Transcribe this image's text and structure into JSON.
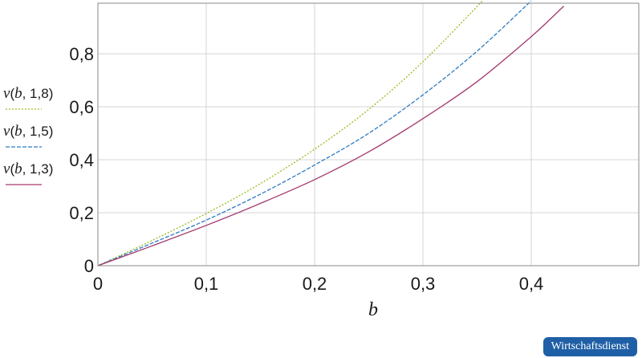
{
  "chart_data": {
    "type": "line",
    "xlabel": "b",
    "ylabel": "",
    "xlim": [
      0,
      0.5
    ],
    "ylim": [
      0,
      1.0
    ],
    "x_ticks": [
      "0",
      "0,1",
      "0,2",
      "0,3",
      "0,4"
    ],
    "y_ticks": [
      "0",
      "0,2",
      "0,4",
      "0,6",
      "0,8"
    ],
    "grid": true,
    "legend_position": "left",
    "series": [
      {
        "name": "v(b, 1,8)",
        "name_parts": {
          "fn": "v",
          "open": "(",
          "var": "b",
          "rest": ", 1,8)"
        },
        "color": "#9bbb1e",
        "dash": "dotted",
        "x": [
          0,
          0.05,
          0.1,
          0.15,
          0.2,
          0.25,
          0.3,
          0.355
        ],
        "y": [
          0,
          0.095,
          0.197,
          0.31,
          0.44,
          0.59,
          0.77,
          1.0
        ]
      },
      {
        "name": "v(b, 1,5)",
        "name_parts": {
          "fn": "v",
          "open": "(",
          "var": "b",
          "rest": ", 1,5)"
        },
        "color": "#2c7bc4",
        "dash": "dashed",
        "x": [
          0,
          0.05,
          0.1,
          0.15,
          0.2,
          0.25,
          0.3,
          0.35,
          0.4
        ],
        "y": [
          0,
          0.085,
          0.172,
          0.27,
          0.38,
          0.5,
          0.645,
          0.81,
          1.0
        ]
      },
      {
        "name": "v(b, 1,3)",
        "name_parts": {
          "fn": "v",
          "open": "(",
          "var": "b",
          "rest": ", 1,3)"
        },
        "color": "#a3396e",
        "dash": "solid",
        "x": [
          0,
          0.05,
          0.1,
          0.15,
          0.2,
          0.25,
          0.3,
          0.35,
          0.4,
          0.43
        ],
        "y": [
          0,
          0.075,
          0.152,
          0.235,
          0.325,
          0.43,
          0.555,
          0.695,
          0.865,
          0.98
        ]
      }
    ]
  },
  "badge": "Wirtschaftsdienst"
}
